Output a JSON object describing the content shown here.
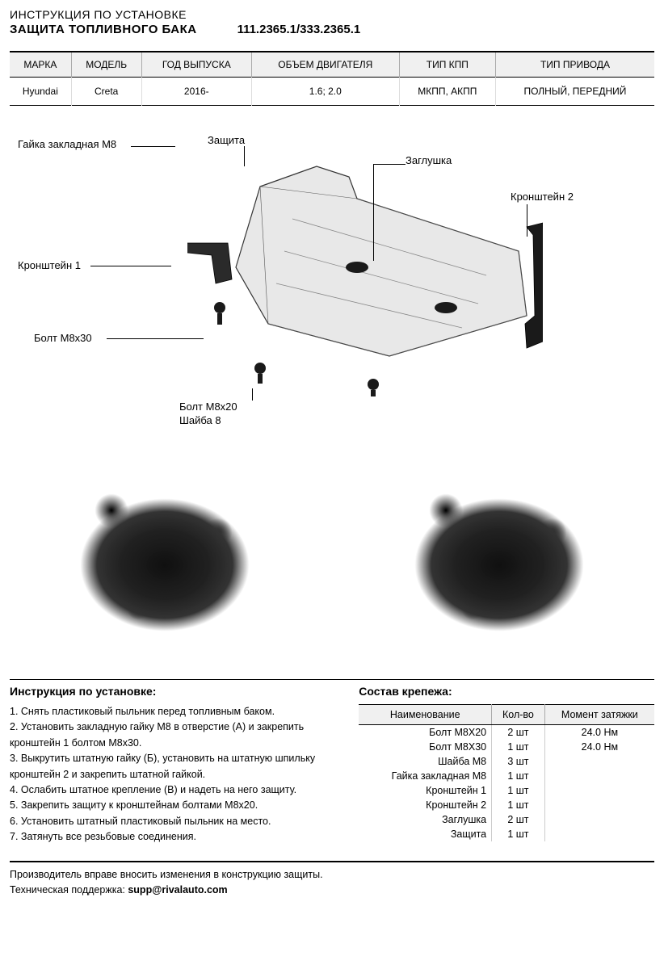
{
  "header": {
    "line1": "ИНСТРУКЦИЯ ПО УСТАНОВКЕ",
    "line2": "ЗАЩИТА ТОПЛИВНОГО БАКА",
    "part_number": "111.2365.1/333.2365.1"
  },
  "spec_table": {
    "headers": [
      "МАРКА",
      "МОДЕЛЬ",
      "ГОД ВЫПУСКА",
      "ОБЪЕМ ДВИГАТЕЛЯ",
      "ТИП КПП",
      "ТИП ПРИВОДА"
    ],
    "row": [
      "Hyundai",
      "Creta",
      "2016-",
      "1.6; 2.0",
      "МКПП, АКПП",
      "ПОЛНЫЙ, ПЕРЕДНИЙ"
    ]
  },
  "diagram_labels": {
    "nut_m8": "Гайка закладная М8",
    "shield": "Защита",
    "plug": "Заглушка",
    "bracket2": "Кронштейн 2",
    "bracket1": "Кронштейн 1",
    "bolt_m8x30": "Болт М8х30",
    "bolt_m8x20": "Болт М8х20",
    "washer8": "Шайба 8"
  },
  "instructions": {
    "title": "Инструкция по установке:",
    "steps": [
      "1. Снять пластиковый пыльник перед топливным баком.",
      "2. Установить закладную гайку М8 в отверстие (А) и закрепить кронштейн 1 болтом М8х30.",
      "3. Выкрутить штатную гайку (Б), установить на штатную шпильку кронштейн 2 и закрепить штатной гайкой.",
      "4. Ослабить штатное крепление (В) и надеть на него защиту.",
      "5. Закрепить защиту к кронштейнам болтами М8х20.",
      "6. Установить штатный пластиковый пыльник на место.",
      "7. Затянуть все резьбовые соединения."
    ]
  },
  "fasteners": {
    "title": "Состав крепежа:",
    "headers": [
      "Наименование",
      "Кол-во",
      "Момент затяжки"
    ],
    "rows": [
      [
        "Болт М8Х20",
        "2 шт",
        "24.0 Нм"
      ],
      [
        "Болт М8Х30",
        "1 шт",
        "24.0 Нм"
      ],
      [
        "Шайба М8",
        "3 шт",
        ""
      ],
      [
        "Гайка закладная М8",
        "1 шт",
        ""
      ],
      [
        "Кронштейн 1",
        "1 шт",
        ""
      ],
      [
        "Кронштейн 2",
        "1 шт",
        ""
      ],
      [
        "Заглушка",
        "2 шт",
        ""
      ],
      [
        "Защита",
        "1 шт",
        ""
      ]
    ]
  },
  "footer": {
    "disclaimer": "Производитель вправе вносить изменения в конструкцию защиты.",
    "support_label": "Техническая поддержка: ",
    "support_email": "supp@rivalauto.com"
  }
}
